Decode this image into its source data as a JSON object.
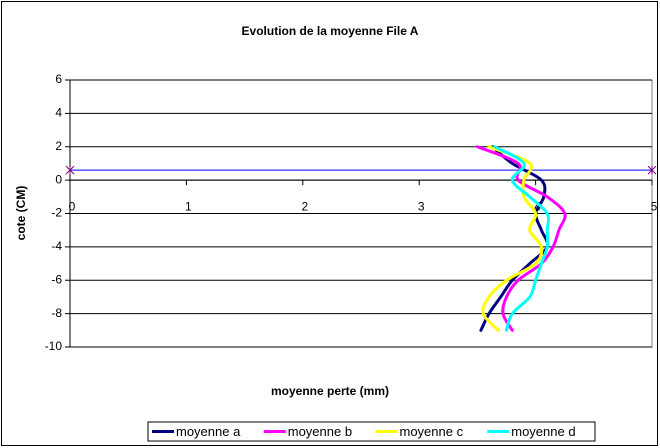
{
  "chart_data": {
    "type": "line",
    "title": "Evolution de la moyenne File A",
    "x_label": "moyenne perte (mm)",
    "y_label": "cote (CM)",
    "xlim": [
      0,
      5
    ],
    "xticks": [
      0,
      1,
      2,
      3,
      4,
      5
    ],
    "ylim": [
      -10,
      6
    ],
    "yticks": [
      -10,
      -8,
      -6,
      -4,
      -2,
      0,
      2,
      4,
      6
    ],
    "grid": true,
    "legend": "bottom",
    "y": [
      2,
      1,
      0,
      -1,
      -2,
      -3,
      -4,
      -5,
      -6,
      -7,
      -8,
      -9
    ],
    "series": [
      {
        "name": "moyenne a",
        "color": "#000080",
        "values": [
          3.63,
          3.8,
          4.05,
          4.07,
          4.0,
          4.05,
          4.1,
          3.95,
          3.8,
          3.7,
          3.6,
          3.53
        ]
      },
      {
        "name": "moyenne b",
        "color": "#ff00ff",
        "values": [
          3.5,
          3.85,
          3.85,
          4.1,
          4.25,
          4.2,
          4.15,
          4.05,
          3.85,
          3.75,
          3.72,
          3.8
        ]
      },
      {
        "name": "moyenne c",
        "color": "#ffff00",
        "values": [
          3.6,
          3.95,
          3.9,
          3.9,
          4.0,
          3.95,
          4.05,
          4.0,
          3.75,
          3.6,
          3.55,
          3.68
        ]
      },
      {
        "name": "moyenne d",
        "color": "#00ffff",
        "values": [
          3.65,
          3.9,
          3.8,
          3.95,
          4.1,
          4.1,
          4.1,
          4.05,
          4.0,
          3.95,
          3.8,
          3.75
        ]
      }
    ],
    "reference_line": {
      "color": "#0000ff",
      "x": [
        0,
        5
      ],
      "y": [
        0.6,
        0.6
      ]
    }
  }
}
